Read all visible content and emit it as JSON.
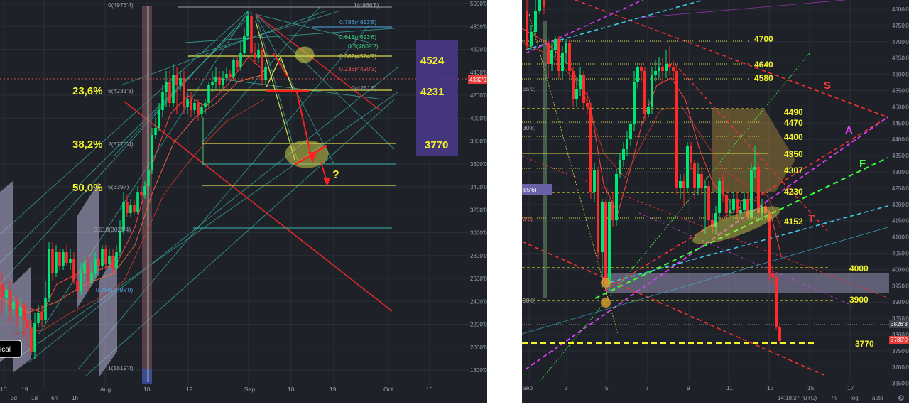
{
  "colors": {
    "bg": "#1e2128",
    "grid": "#2a2e36",
    "bull": "#00e676",
    "bear": "#ff2a2a",
    "fib_line": "#d9d94a",
    "label_yellow": "#f2f22c",
    "fan": "#3bb5a8",
    "box_purple": "#4a3a8c",
    "price_tag": "#e53935",
    "axis_text": "#9aa1ad"
  },
  "left_chart": {
    "y_axis_labels": [
      "5000'0",
      "4800'0",
      "4600'0",
      "4400'0",
      "4200'0",
      "4000'0",
      "3800'0",
      "3600'0",
      "3400'0",
      "3200'0",
      "3000'0",
      "2800'0",
      "2600'0",
      "2400'0",
      "2200'0",
      "2000'0",
      "1800'0"
    ],
    "x_axis_labels": [
      "10",
      "19",
      "Aug",
      "10",
      "19",
      "Sep",
      "10",
      "19",
      "Oct",
      "10"
    ],
    "timeframes": [
      "3d",
      "1d",
      "6h",
      "1h"
    ],
    "price_tag": "4332'0",
    "fib_right": [
      {
        "ratio": "1(4966'8)",
        "color": "#9aa1ad"
      },
      {
        "ratio": "0.786(4813'8)",
        "color": "#4fa3e0"
      },
      {
        "ratio": "0.618(4693'6)",
        "color": "#3ed17c"
      },
      {
        "ratio": "0.5(4609'2)",
        "color": "#3ed17c"
      },
      {
        "ratio": "0.382(4524'7)",
        "color": "#d9d94a"
      },
      {
        "ratio": "0.236(4420'3)",
        "color": "#ff5a5a"
      },
      {
        "ratio": "0(4251'5)",
        "color": "#9aa1ad"
      }
    ],
    "fib_small": {
      "top": "0(4976'4)",
      "p236": "6(4231'3)",
      "p382": "2(3770'4)",
      "p5": "5(3397)",
      "p618": "0.618(3025'4)",
      "p786": "0.786(2495'0)",
      "p1": "1(1819'4)"
    },
    "fib_pct": {
      "p236": "23,6%",
      "p382": "38,2%",
      "p5": "50,0%"
    },
    "levels_box": [
      "4524",
      "4231",
      "3770"
    ],
    "question_mark": "?",
    "badge": "ical"
  },
  "right_chart": {
    "y_axis_labels": [
      "4800'0",
      "4750'0",
      "4700'0",
      "4650'0",
      "4600'0",
      "4550'0",
      "4500'0",
      "4450'0",
      "4400'0",
      "4350'0",
      "4300'0",
      "4250'0",
      "4200'0",
      "4150'0",
      "4100'0",
      "4050'0",
      "4000'0",
      "3950'0",
      "3900'0",
      "3850'0",
      "3800'0",
      "3750'0",
      "3700'0",
      "3650'0"
    ],
    "x_axis_labels": [
      "Sep",
      "3",
      "5",
      "7",
      "9",
      "11",
      "13",
      "15",
      "17"
    ],
    "price_tags": [
      "3826'3",
      "3780'0"
    ],
    "levels": [
      "4700",
      "4640",
      "4580",
      "4490",
      "4470",
      "4400",
      "4350",
      "4307",
      "4230",
      "4152",
      "4000",
      "3900",
      "3770"
    ],
    "line_letters": {
      "s": "S",
      "a": "A",
      "f": "F",
      "t": "T"
    },
    "small_left_labels": [
      "55'9)",
      "30'8)",
      "85'6)",
      "0'0)",
      "00'0)"
    ],
    "status": {
      "time": "14:18:27 (UTC)",
      "pct": "%",
      "log": "log",
      "auto": "auto"
    }
  }
}
